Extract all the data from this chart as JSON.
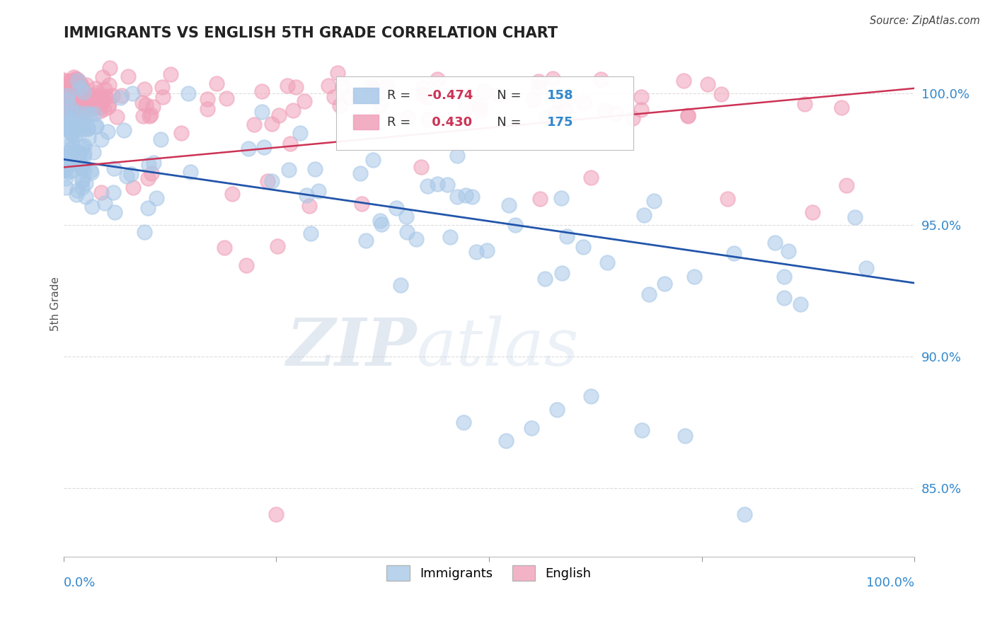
{
  "title": "IMMIGRANTS VS ENGLISH 5TH GRADE CORRELATION CHART",
  "source": "Source: ZipAtlas.com",
  "ylabel": "5th Grade",
  "y_tick_labels": [
    "85.0%",
    "90.0%",
    "95.0%",
    "100.0%"
  ],
  "y_tick_values": [
    0.85,
    0.9,
    0.95,
    1.0
  ],
  "x_range": [
    0.0,
    1.0
  ],
  "y_range": [
    0.824,
    1.016
  ],
  "blue_R": -0.474,
  "blue_N": 158,
  "pink_R": 0.43,
  "pink_N": 175,
  "blue_color": "#a8c8e8",
  "pink_color": "#f0a0b8",
  "blue_line_color": "#2255aa",
  "pink_line_color": "#cc3355",
  "legend_R_color_blue": "#cc3355",
  "legend_R_color_pink": "#cc3355",
  "legend_N_color": "#3388cc",
  "background_color": "#ffffff",
  "title_color": "#222222",
  "axis_label_color": "#3388cc",
  "grid_color": "#cccccc",
  "watermark_zip_color": "#b8cce0",
  "watermark_atlas_color": "#c8d8e8",
  "blue_line_x0": 0.0,
  "blue_line_y0": 0.975,
  "blue_line_x1": 1.0,
  "blue_line_y1": 0.928,
  "pink_line_x0": 0.0,
  "pink_line_y0": 0.972,
  "pink_line_x1": 1.0,
  "pink_line_y1": 1.002
}
